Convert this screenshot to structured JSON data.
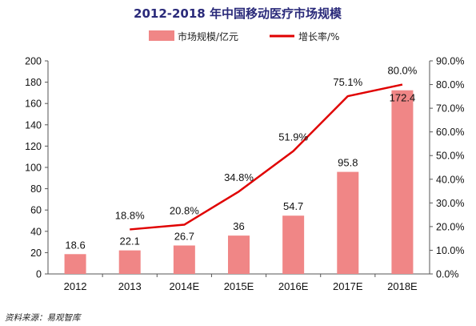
{
  "chart_data": {
    "type": "bar+line",
    "title": "2012-2018 年中国移动医疗市场规模",
    "categories": [
      "2012",
      "2013",
      "2014E",
      "2015E",
      "2016E",
      "2017E",
      "2018E"
    ],
    "series": [
      {
        "name": "市场规模/亿元",
        "type": "bar",
        "axis": "left",
        "color": "#f08686",
        "values": [
          18.6,
          22.1,
          26.7,
          36,
          54.7,
          95.8,
          172.4
        ],
        "labels": [
          "18.6",
          "22.1",
          "26.7",
          "36",
          "54.7",
          "95.8",
          "172.4"
        ]
      },
      {
        "name": "增长率/%",
        "type": "line",
        "axis": "right",
        "color": "#e00000",
        "values": [
          null,
          18.8,
          20.8,
          34.8,
          51.9,
          75.1,
          80.0
        ],
        "labels": [
          "",
          "18.8%",
          "20.8%",
          "34.8%",
          "51.9%",
          "75.1%",
          "80.0%"
        ]
      }
    ],
    "y_left": {
      "min": 0,
      "max": 200,
      "ticks": [
        "0",
        "20",
        "40",
        "60",
        "80",
        "100",
        "120",
        "140",
        "160",
        "180",
        "200"
      ]
    },
    "y_right": {
      "min": 0,
      "max": 90,
      "ticks": [
        "0.0%",
        "10.0%",
        "20.0%",
        "30.0%",
        "40.0%",
        "50.0%",
        "60.0%",
        "70.0%",
        "80.0%",
        "90.0%"
      ]
    },
    "legend_placement": "top-center",
    "grid": false
  },
  "source_note": "资料来源：易观智库"
}
